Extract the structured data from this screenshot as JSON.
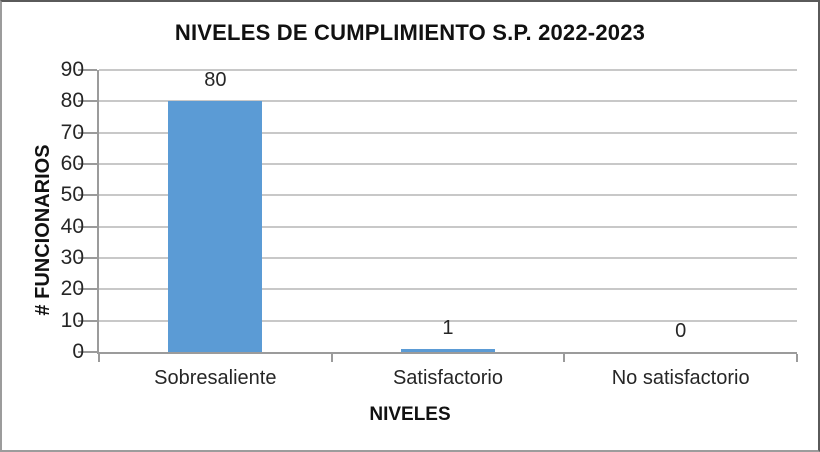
{
  "chart_data": {
    "type": "bar",
    "title": "NIVELES DE CUMPLIMIENTO S.P. 2022-2023",
    "xlabel": "NIVELES",
    "ylabel": "# FUNCIONARIOS",
    "categories": [
      "Sobresaliente",
      "Satisfactorio",
      "No satisfactorio"
    ],
    "values": [
      80,
      1,
      0
    ],
    "data_labels": [
      "80",
      "1",
      "0"
    ],
    "ylim": [
      0,
      90
    ],
    "yticks": [
      0,
      10,
      20,
      30,
      40,
      50,
      60,
      70,
      80,
      90
    ],
    "grid": "horizontal",
    "legend": "none",
    "bar_color": "#5B9BD5",
    "gridline_color": "#C8C8C8",
    "axis_color": "#9B9B9B",
    "title_color": "#111111",
    "label_color": "#262626"
  }
}
